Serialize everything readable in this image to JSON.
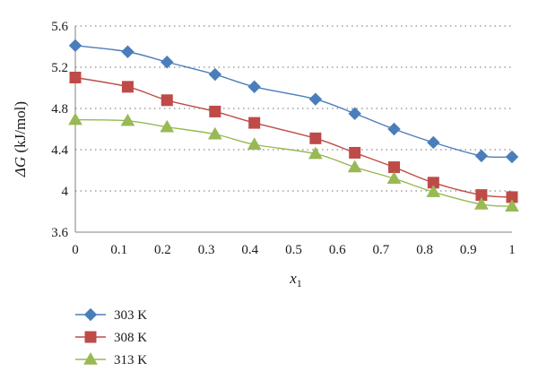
{
  "chart_data": {
    "type": "line",
    "xlabel": {
      "main": "x",
      "sub": "1"
    },
    "ylabel": {
      "symbol": "ΔG",
      "unit": " (kJ/mol)"
    },
    "xlim": [
      0,
      1
    ],
    "ylim": [
      3.6,
      5.6
    ],
    "x_ticks": [
      0,
      0.1,
      0.2,
      0.3,
      0.4,
      0.5,
      0.6,
      0.7,
      0.8,
      0.9,
      1
    ],
    "x_tick_labels": [
      "0",
      "0.1",
      "0.2",
      "0.3",
      "0.4",
      "0.5",
      "0.6",
      "0.7",
      "0.8",
      "0.9",
      "1"
    ],
    "y_ticks": [
      3.6,
      4.0,
      4.4,
      4.8,
      5.2,
      5.6
    ],
    "y_tick_labels": [
      "3.6",
      "4",
      "4.4",
      "4.8",
      "5.2",
      "5.6"
    ],
    "grid": {
      "horizontal": true,
      "style": "dotted",
      "vertical": false
    },
    "legend_position": "bottom-left",
    "x": [
      0,
      0.12,
      0.21,
      0.32,
      0.41,
      0.55,
      0.64,
      0.73,
      0.82,
      0.93,
      1.0
    ],
    "series": [
      {
        "name": "303 K",
        "marker": "diamond",
        "color": "#4a7ebb",
        "values": [
          5.41,
          5.35,
          5.25,
          5.13,
          5.01,
          4.89,
          4.75,
          4.6,
          4.47,
          4.34,
          4.33
        ]
      },
      {
        "name": "308 K",
        "marker": "square",
        "color": "#be4b48",
        "values": [
          5.1,
          5.01,
          4.88,
          4.77,
          4.66,
          4.51,
          4.37,
          4.23,
          4.08,
          3.96,
          3.94
        ]
      },
      {
        "name": "313 K",
        "marker": "triangle",
        "color": "#98b954",
        "values": [
          4.69,
          4.68,
          4.62,
          4.55,
          4.45,
          4.36,
          4.23,
          4.12,
          3.99,
          3.87,
          3.85
        ]
      }
    ]
  }
}
